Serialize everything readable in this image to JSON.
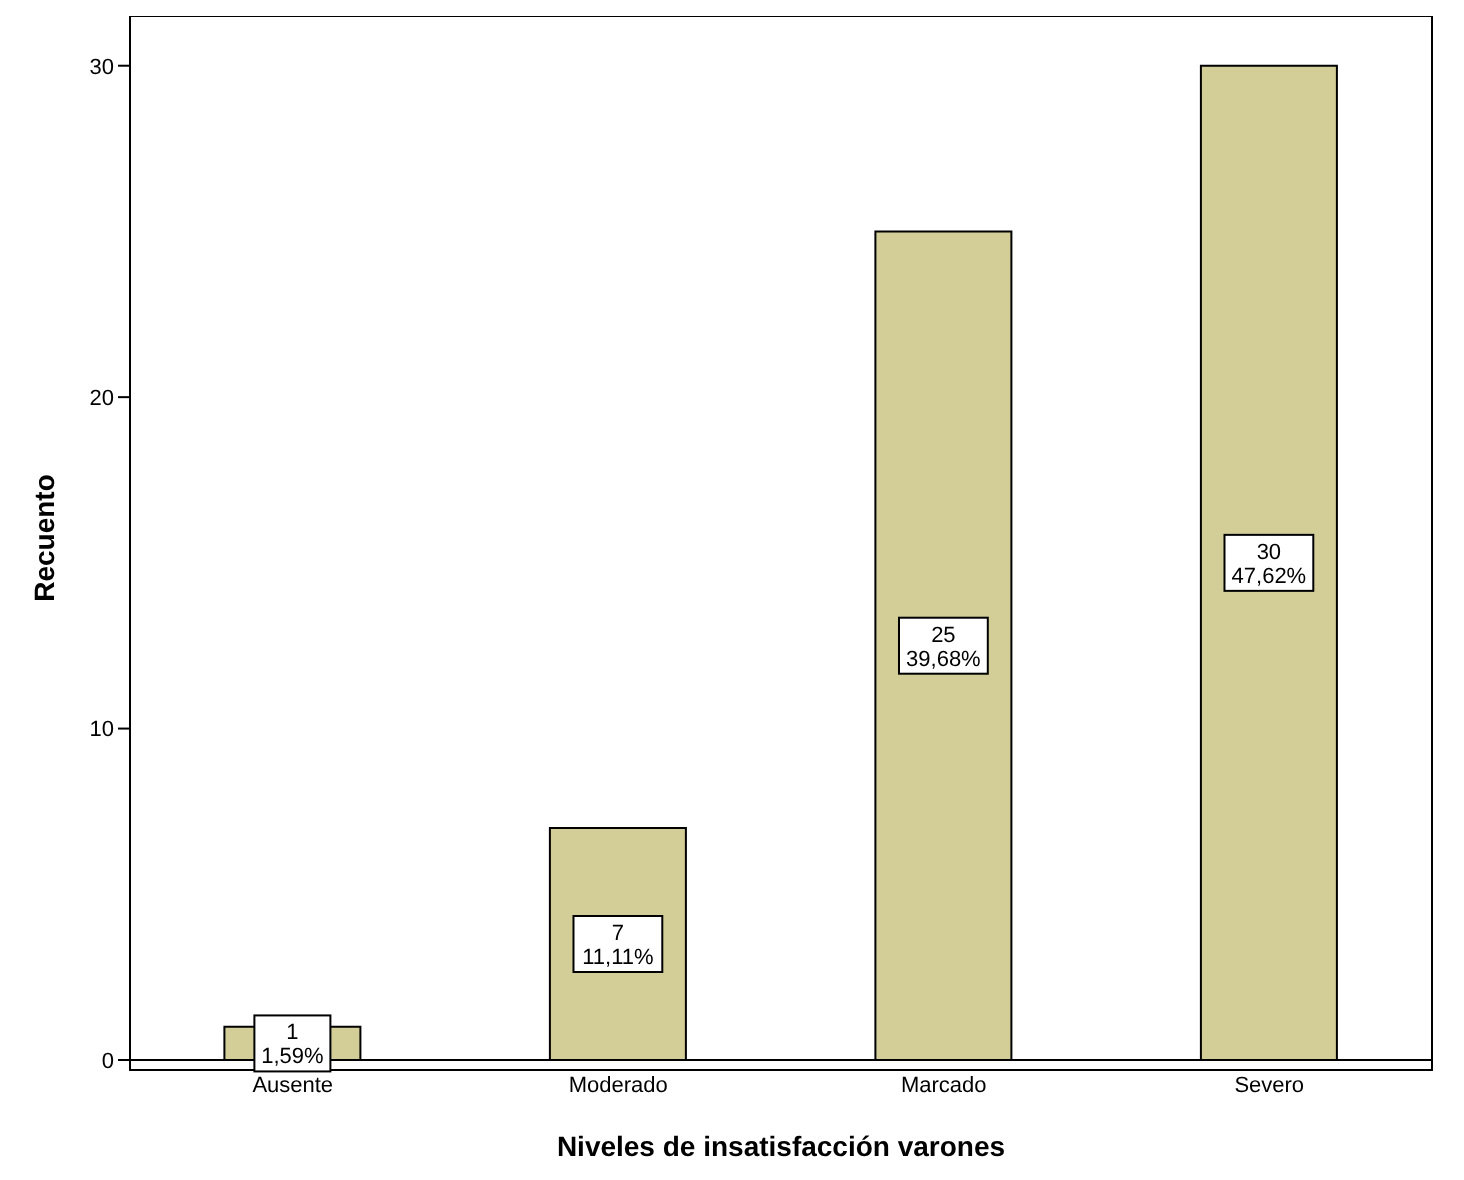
{
  "chart_data": {
    "type": "bar",
    "xlabel": "Niveles de insatisfacción varones",
    "ylabel": "Recuento",
    "categories": [
      "Ausente",
      "Moderado",
      "Marcado",
      "Severo"
    ],
    "values": [
      1,
      7,
      25,
      30
    ],
    "color": "#d3ce97",
    "value_labels": [
      "1\n1,59%",
      "7\n11,11%",
      "25\n39,68%",
      "30\n47,62%"
    ],
    "ylim": [
      0,
      31.5
    ],
    "yticks": [
      0,
      10,
      20,
      30
    ],
    "grid": false
  }
}
